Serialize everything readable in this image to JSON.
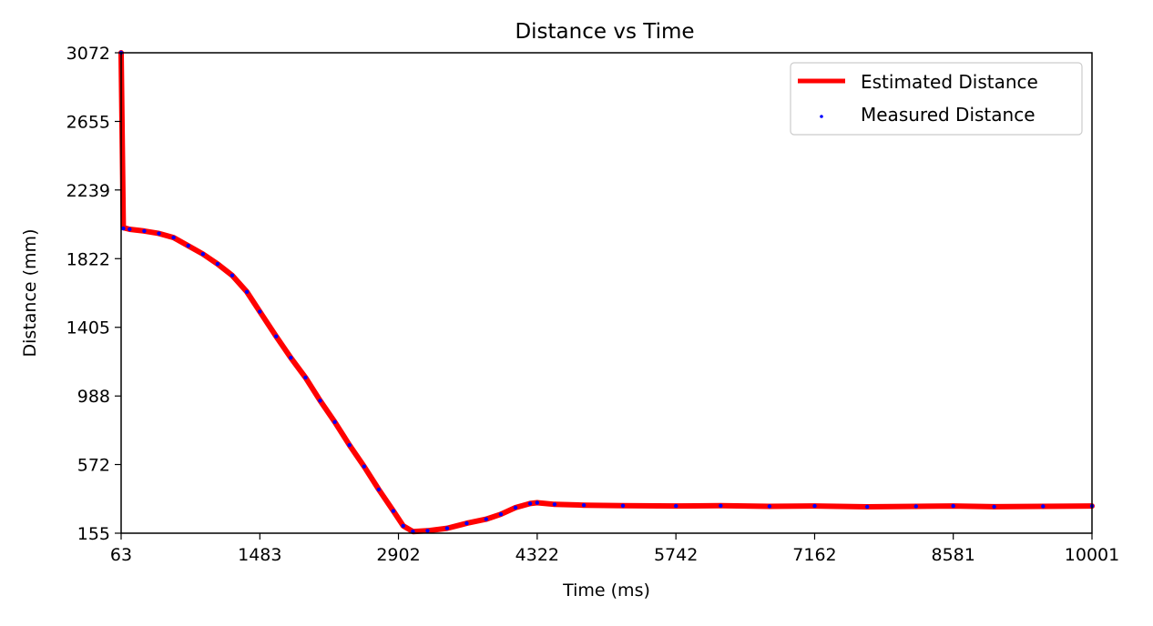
{
  "chart_data": {
    "type": "line",
    "title": "Distance vs Time",
    "xlabel": "Time (ms)",
    "ylabel": "Distance (mm)",
    "xlim": [
      63,
      10001
    ],
    "ylim": [
      155,
      3072
    ],
    "x_ticks": [
      63,
      1483,
      2902,
      4322,
      5742,
      7162,
      8581,
      10001
    ],
    "y_ticks": [
      155,
      572,
      988,
      1405,
      1822,
      2239,
      2655,
      3072
    ],
    "grid": false,
    "legend_position": "top-right",
    "series": [
      {
        "name": "Estimated Distance",
        "style": "line",
        "color": "#ff0000",
        "points": [
          [
            63,
            3072
          ],
          [
            75,
            2500
          ],
          [
            85,
            2010
          ],
          [
            150,
            2000
          ],
          [
            300,
            1990
          ],
          [
            450,
            1975
          ],
          [
            600,
            1950
          ],
          [
            750,
            1900
          ],
          [
            900,
            1850
          ],
          [
            1050,
            1790
          ],
          [
            1200,
            1720
          ],
          [
            1350,
            1620
          ],
          [
            1483,
            1500
          ],
          [
            1650,
            1350
          ],
          [
            1800,
            1220
          ],
          [
            1950,
            1100
          ],
          [
            2100,
            960
          ],
          [
            2250,
            830
          ],
          [
            2400,
            690
          ],
          [
            2550,
            560
          ],
          [
            2700,
            420
          ],
          [
            2850,
            290
          ],
          [
            2950,
            200
          ],
          [
            3050,
            165
          ],
          [
            3200,
            170
          ],
          [
            3400,
            185
          ],
          [
            3600,
            215
          ],
          [
            3800,
            240
          ],
          [
            3950,
            270
          ],
          [
            4100,
            310
          ],
          [
            4250,
            335
          ],
          [
            4322,
            340
          ],
          [
            4500,
            330
          ],
          [
            4800,
            325
          ],
          [
            5200,
            322
          ],
          [
            5742,
            320
          ],
          [
            6200,
            322
          ],
          [
            6700,
            318
          ],
          [
            7162,
            320
          ],
          [
            7700,
            315
          ],
          [
            8200,
            318
          ],
          [
            8581,
            320
          ],
          [
            9000,
            316
          ],
          [
            9500,
            318
          ],
          [
            10001,
            320
          ]
        ]
      },
      {
        "name": "Measured Distance",
        "style": "scatter",
        "color": "#0000ff",
        "points": [
          [
            63,
            3072
          ],
          [
            85,
            2005
          ],
          [
            150,
            2000
          ],
          [
            300,
            1990
          ],
          [
            450,
            1975
          ],
          [
            600,
            1950
          ],
          [
            750,
            1900
          ],
          [
            900,
            1850
          ],
          [
            1050,
            1790
          ],
          [
            1200,
            1720
          ],
          [
            1350,
            1620
          ],
          [
            1483,
            1500
          ],
          [
            1650,
            1350
          ],
          [
            1800,
            1220
          ],
          [
            1950,
            1100
          ],
          [
            2100,
            960
          ],
          [
            2250,
            830
          ],
          [
            2400,
            690
          ],
          [
            2550,
            560
          ],
          [
            2700,
            420
          ],
          [
            2850,
            290
          ],
          [
            2950,
            200
          ],
          [
            3050,
            165
          ],
          [
            3200,
            170
          ],
          [
            3400,
            185
          ],
          [
            3600,
            215
          ],
          [
            3800,
            240
          ],
          [
            3950,
            270
          ],
          [
            4100,
            310
          ],
          [
            4250,
            335
          ],
          [
            4322,
            340
          ],
          [
            4500,
            330
          ],
          [
            4800,
            325
          ],
          [
            5200,
            322
          ],
          [
            5742,
            320
          ],
          [
            6200,
            322
          ],
          [
            6700,
            318
          ],
          [
            7162,
            320
          ],
          [
            7700,
            315
          ],
          [
            8200,
            318
          ],
          [
            8581,
            320
          ],
          [
            9000,
            316
          ],
          [
            9500,
            318
          ],
          [
            10001,
            320
          ]
        ]
      }
    ]
  }
}
